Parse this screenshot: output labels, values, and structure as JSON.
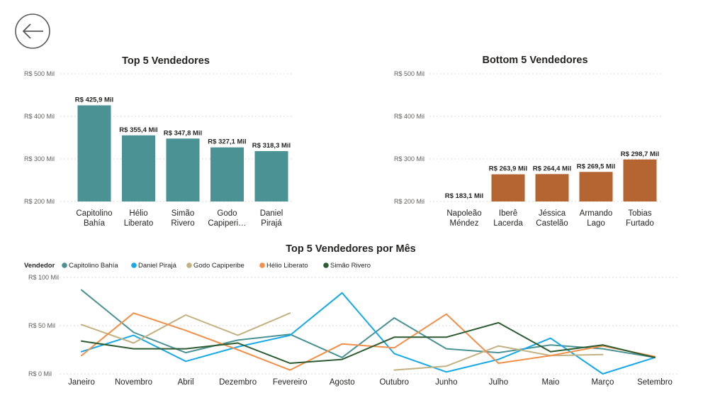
{
  "back_icon": "arrow-left-circle-icon",
  "chart_data": [
    {
      "type": "bar",
      "title": "Top 5 Vendedores",
      "categories": [
        "Capitolino Bahía",
        "Hélio Liberato",
        "Simão Rivero",
        "Godo Capiperi…",
        "Daniel Pirajá"
      ],
      "values": [
        425.9,
        355.4,
        347.8,
        327.1,
        318.3
      ],
      "data_labels": [
        "R$ 425,9 Mil",
        "R$ 355,4 Mil",
        "R$ 347,8 Mil",
        "R$ 327,1 Mil",
        "R$ 318,3 Mil"
      ],
      "ylim": [
        200,
        500
      ],
      "yticks": [
        200,
        300,
        400,
        500
      ],
      "ytick_labels": [
        "R$ 200 Mil",
        "R$ 300 Mil",
        "R$ 400 Mil",
        "R$ 500 Mil"
      ],
      "color": "#4a9294",
      "grid": true
    },
    {
      "type": "bar",
      "title": "Bottom 5 Vendedores",
      "categories": [
        "Napoleão Méndez",
        "Iberê Lacerda",
        "Jéssica Castelão",
        "Armando Lago",
        "Tobias Furtado"
      ],
      "values": [
        183.1,
        263.9,
        264.4,
        269.5,
        298.7
      ],
      "data_labels": [
        "R$ 183,1 Mil",
        "R$ 263,9 Mil",
        "R$ 264,4 Mil",
        "R$ 269,5 Mil",
        "R$ 298,7 Mil"
      ],
      "ylim": [
        200,
        500
      ],
      "yticks": [
        200,
        300,
        400,
        500
      ],
      "ytick_labels": [
        "R$ 200 Mil",
        "R$ 300 Mil",
        "R$ 400 Mil",
        "R$ 500 Mil"
      ],
      "color": "#b46532",
      "grid": true
    },
    {
      "type": "line",
      "title": "Top 5 Vendedores por Mês",
      "legend_title": "Vendedor",
      "legend_position": "top-left",
      "categories": [
        "Janeiro",
        "Novembro",
        "Abril",
        "Dezembro",
        "Fevereiro",
        "Agosto",
        "Outubro",
        "Junho",
        "Julho",
        "Maio",
        "Março",
        "Setembro"
      ],
      "ylim": [
        0,
        100
      ],
      "yticks": [
        0,
        50,
        100
      ],
      "ytick_labels": [
        "R$ 0 Mil",
        "R$ 50 Mil",
        "R$ 100 Mil"
      ],
      "grid": true,
      "series": [
        {
          "name": "Capitolino Bahía",
          "color": "#4a9294",
          "values": [
            87,
            43,
            22,
            35,
            41,
            17,
            58,
            26,
            22,
            30,
            26,
            17
          ]
        },
        {
          "name": "Daniel Pirajá",
          "color": "#15a9ea",
          "values": [
            23,
            40,
            13,
            28,
            40,
            84,
            21,
            2,
            15,
            37,
            0,
            17
          ]
        },
        {
          "name": "Godo Capiperibe",
          "color": "#c3b181",
          "values": [
            51,
            32,
            61,
            40,
            63,
            null,
            4,
            8,
            29,
            19,
            20,
            null
          ]
        },
        {
          "name": "Hélio Liberato",
          "color": "#f2904a",
          "values": [
            19,
            63,
            45,
            25,
            4,
            31,
            27,
            62,
            11,
            19,
            29,
            18
          ]
        },
        {
          "name": "Simão Rivero",
          "color": "#2e5c32",
          "values": [
            34,
            26,
            26,
            32,
            11,
            15,
            38,
            38,
            53,
            23,
            30,
            17
          ]
        }
      ]
    }
  ]
}
